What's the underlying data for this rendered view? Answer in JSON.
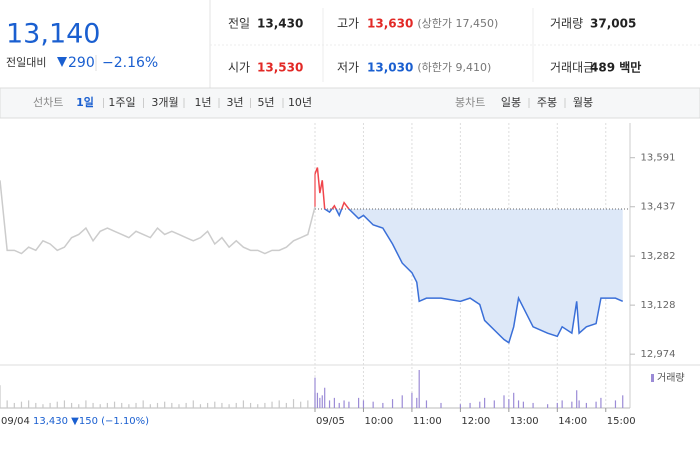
{
  "header": {
    "price": "13,140",
    "change_label": "전일대비",
    "change": "290",
    "change_rate": "−2.16%",
    "color": "#1a5fd0"
  },
  "summary": [
    {
      "label": "전일",
      "value": "13,430",
      "color": "#222222"
    },
    {
      "label": "고가",
      "value": "13,630",
      "note": "(상한가 17,450)",
      "color": "#e22926"
    },
    {
      "label": "거래량",
      "value": "37,005",
      "color": "#222222"
    },
    {
      "label": "시가",
      "value": "13,530",
      "color": "#e22926"
    },
    {
      "label": "저가",
      "value": "13,030",
      "note": "(하한가 9,410)",
      "color": "#1a5fd0"
    },
    {
      "label": "거래대금",
      "value": "489 백만",
      "color": "#222222"
    }
  ],
  "tabs": {
    "line_label": "선차트",
    "line_periods": [
      "1일",
      "1주일",
      "3개월",
      "1년",
      "3년",
      "5년",
      "10년"
    ],
    "candle_label": "봉차트",
    "candle_periods": [
      "일봉",
      "주봉",
      "월봉"
    ]
  },
  "chart_data": {
    "type": "line",
    "prev_date": "09/04",
    "prev_summary": "13,430 ▼150 (−1.10%)",
    "prev_values": [
      13520,
      13300,
      13300,
      13290,
      13310,
      13300,
      13330,
      13320,
      13300,
      13310,
      13340,
      13350,
      13370,
      13330,
      13360,
      13370,
      13360,
      13350,
      13340,
      13360,
      13350,
      13340,
      13370,
      13350,
      13360,
      13350,
      13340,
      13330,
      13340,
      13360,
      13320,
      13340,
      13310,
      13330,
      13310,
      13300,
      13300,
      13290,
      13300,
      13300,
      13310,
      13330,
      13340,
      13350,
      13437
    ],
    "prev_volume": [
      900,
      300,
      200,
      250,
      300,
      200,
      150,
      200,
      250,
      300,
      200,
      150,
      300,
      200,
      150,
      200,
      250,
      200,
      150,
      200,
      300,
      150,
      200,
      250,
      200,
      150,
      200,
      300,
      150,
      200,
      250,
      200,
      150,
      200,
      300,
      200,
      150,
      200,
      250,
      300,
      200,
      350,
      250,
      300,
      600
    ],
    "x": [
      9,
      9.05,
      9.1,
      9.15,
      9.2,
      9.3,
      9.4,
      9.5,
      9.6,
      9.7,
      9.9,
      10,
      10.2,
      10.4,
      10.6,
      10.8,
      11,
      11.1,
      11.15,
      11.3,
      11.6,
      12,
      12.2,
      12.4,
      12.5,
      12.7,
      12.9,
      13,
      13.1,
      13.2,
      13.3,
      13.5,
      13.8,
      14,
      14.1,
      14.3,
      14.4,
      14.45,
      14.6,
      14.8,
      14.9,
      15.2,
      15.35
    ],
    "values": [
      13540,
      13560,
      13480,
      13520,
      13430,
      13420,
      13440,
      13410,
      13450,
      13430,
      13400,
      13410,
      13380,
      13370,
      13320,
      13260,
      13230,
      13200,
      13140,
      13150,
      13150,
      13140,
      13150,
      13130,
      13080,
      13050,
      13020,
      13010,
      13060,
      13150,
      13120,
      13060,
      13040,
      13030,
      13060,
      13040,
      13140,
      13040,
      13060,
      13070,
      13150,
      13150,
      13140
    ],
    "volume": [
      1200,
      600,
      400,
      500,
      800,
      300,
      400,
      200,
      300,
      250,
      400,
      300,
      250,
      200,
      350,
      500,
      600,
      400,
      1500,
      300,
      200,
      150,
      200,
      250,
      400,
      300,
      500,
      350,
      600,
      300,
      250,
      200,
      150,
      200,
      300,
      250,
      700,
      300,
      200,
      250,
      400,
      300,
      500
    ],
    "volume_label": "거래량",
    "reference": 13430,
    "up_color": "#f0454b",
    "down_color": "#3a6fd8",
    "prev_color": "#cccccc",
    "area_color": "#dde8f8",
    "volume_color": "#9b8bd6",
    "xlim": [
      9,
      15.5
    ],
    "xticks": [
      {
        "value": 9,
        "label": "09/05"
      },
      {
        "value": 10,
        "label": "10:00"
      },
      {
        "value": 11,
        "label": "11:00"
      },
      {
        "value": 12,
        "label": "12:00"
      },
      {
        "value": 13,
        "label": "13:00"
      },
      {
        "value": 14,
        "label": "14:00"
      },
      {
        "value": 15,
        "label": "15:00"
      }
    ],
    "ylim": [
      12940,
      13700
    ],
    "yticks": [
      {
        "value": 13591,
        "label": "13,591"
      },
      {
        "value": 13437,
        "label": "13,437"
      },
      {
        "value": 13282,
        "label": "13,282"
      },
      {
        "value": 13128,
        "label": "13,128"
      },
      {
        "value": 12974,
        "label": "12,974"
      }
    ]
  }
}
